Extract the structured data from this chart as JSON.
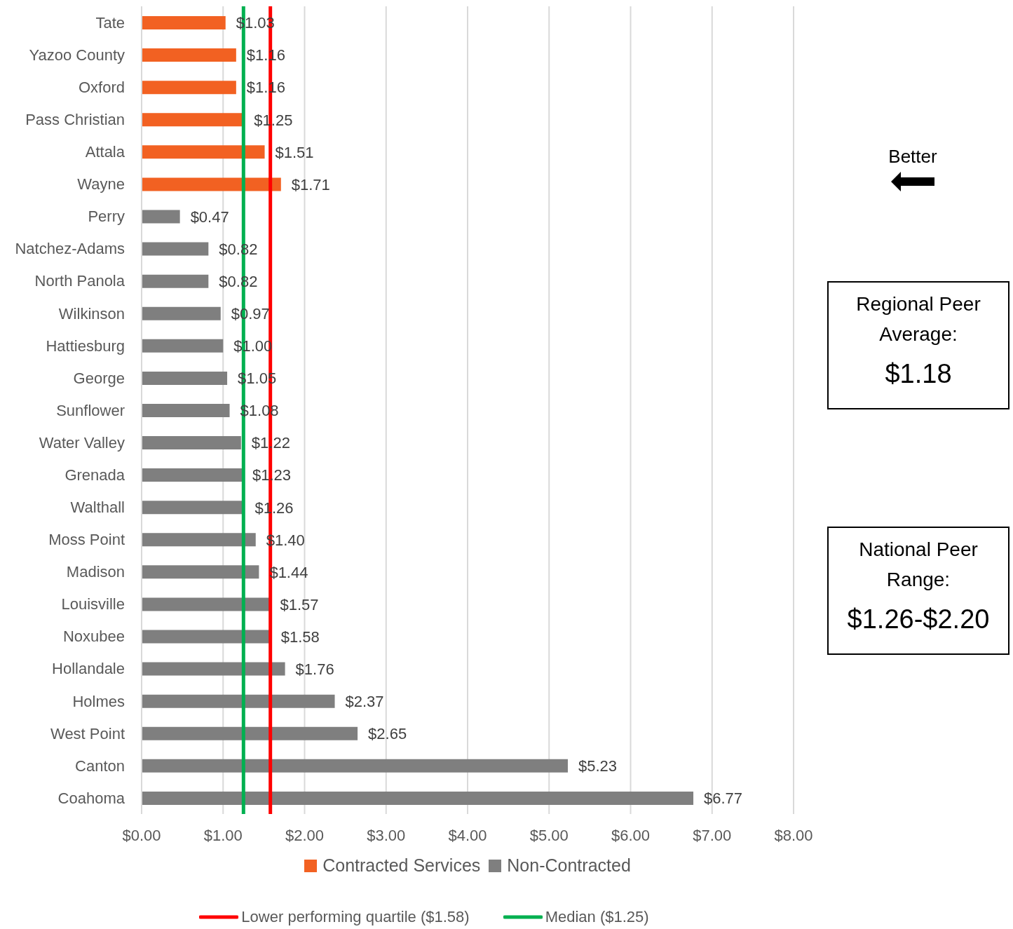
{
  "chart_data": {
    "type": "bar",
    "orientation": "horizontal",
    "stacked": true,
    "categories": [
      "Tate",
      "Yazoo County",
      "Oxford",
      "Pass Christian",
      "Attala",
      "Wayne",
      "Perry",
      "Natchez-Adams",
      "North Panola",
      "Wilkinson",
      "Hattiesburg",
      "George",
      "Sunflower",
      "Water Valley",
      "Grenada",
      "Walthall",
      "Moss Point",
      "Madison",
      "Louisville",
      "Noxubee",
      "Hollandale",
      "Holmes",
      "West Point",
      "Canton",
      "Coahoma"
    ],
    "series": [
      {
        "name": "Contracted Services",
        "color": "#f26122",
        "values": [
          1.03,
          1.16,
          1.16,
          1.25,
          1.51,
          1.71,
          null,
          null,
          null,
          null,
          null,
          null,
          null,
          null,
          null,
          null,
          null,
          null,
          null,
          null,
          null,
          null,
          null,
          null,
          null
        ],
        "value_labels": [
          "$1.03",
          "$1.16",
          "$1.16",
          "$1.25",
          "$1.51",
          "$1.71",
          null,
          null,
          null,
          null,
          null,
          null,
          null,
          null,
          null,
          null,
          null,
          null,
          null,
          null,
          null,
          null,
          null,
          null,
          null
        ]
      },
      {
        "name": "Non-Contracted",
        "color": "#7f7f7f",
        "values": [
          null,
          null,
          null,
          null,
          null,
          null,
          0.47,
          0.82,
          0.82,
          0.97,
          1.0,
          1.05,
          1.08,
          1.22,
          1.23,
          1.26,
          1.4,
          1.44,
          1.57,
          1.58,
          1.76,
          2.37,
          2.65,
          5.23,
          6.77
        ],
        "value_labels": [
          null,
          null,
          null,
          null,
          null,
          null,
          "$0.47",
          "$0.82",
          "$0.82",
          "$0.97",
          "$1.00",
          "$1.05",
          "$1.08",
          "$1.22",
          "$1.23",
          "$1.26",
          "$1.40",
          "$1.44",
          "$1.57",
          "$1.58",
          "$1.76",
          "$2.37",
          "$2.65",
          "$5.23",
          "$6.77"
        ]
      }
    ],
    "xlim": [
      0,
      8
    ],
    "xticks": [
      {
        "value": 0,
        "label": "$0.00"
      },
      {
        "value": 1,
        "label": "$1.00"
      },
      {
        "value": 2,
        "label": "$2.00"
      },
      {
        "value": 3,
        "label": "$3.00"
      },
      {
        "value": 4,
        "label": "$4.00"
      },
      {
        "value": 5,
        "label": "$5.00"
      },
      {
        "value": 6,
        "label": "$6.00"
      },
      {
        "value": 7,
        "label": "$7.00"
      },
      {
        "value": 8,
        "label": "$8.00"
      }
    ],
    "grid": "x",
    "legend": "bottom",
    "ref_lines": [
      {
        "axis": "x",
        "value": 1.58,
        "label": "Lower performing quartile ($1.58)",
        "color": "#ff0000"
      },
      {
        "axis": "x",
        "value": 1.25,
        "label": "Median ($1.25)",
        "color": "#00b050"
      }
    ],
    "annotations": [
      "Better",
      "Regional Peer Average:\n$1.18",
      "National Peer Range:\n$1.26-$2.20"
    ]
  }
}
